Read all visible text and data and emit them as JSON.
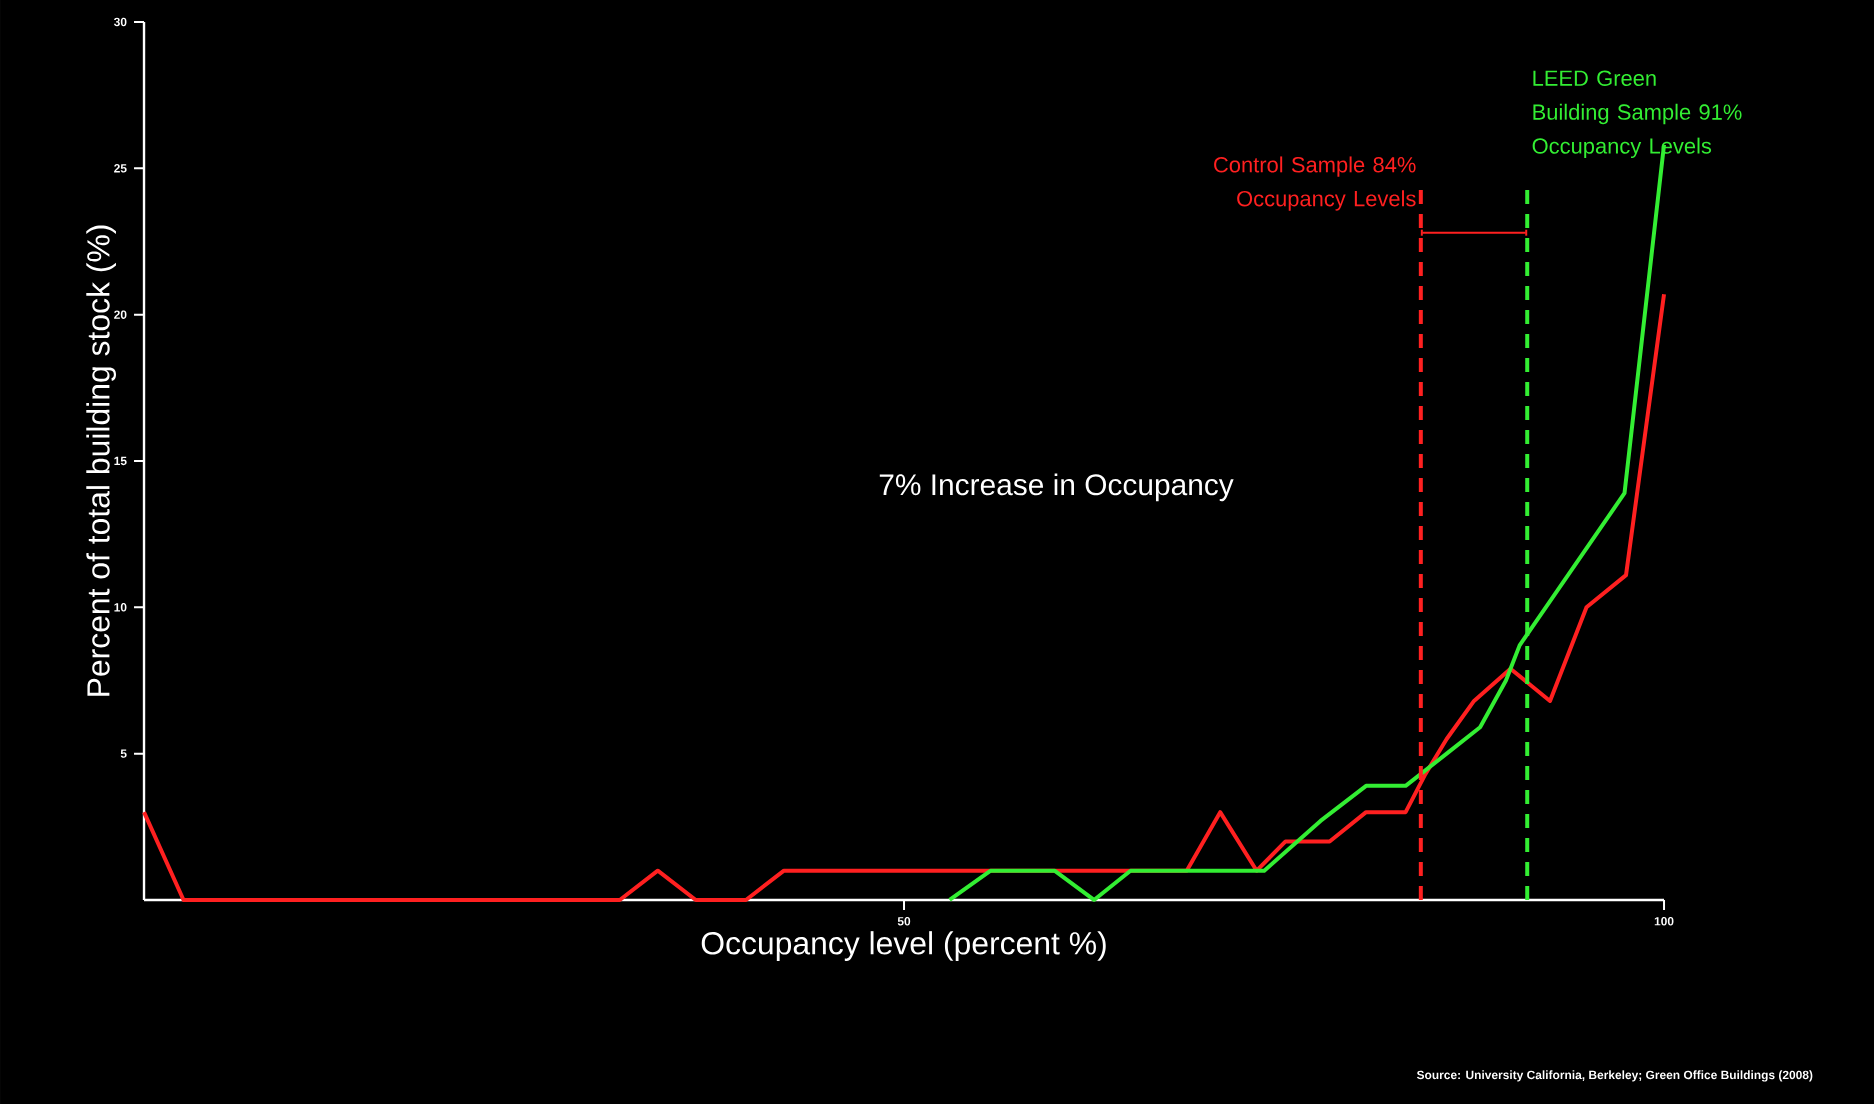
{
  "chart_data": {
    "type": "line",
    "xlabel": "Occupancy level (percent %)",
    "ylabel": "Percent of total building stock (%)",
    "xlim": [
      0,
      100
    ],
    "xticks": [
      50,
      100
    ],
    "ylim": [
      0,
      30
    ],
    "yticks": [
      5,
      10,
      15,
      20,
      25,
      30
    ],
    "series": [
      {
        "color": "#ff2020",
        "x": [
          0,
          2.6,
          31.3,
          33.8,
          36.3,
          39.6,
          42.1,
          68.6,
          70.8,
          73.2,
          75.1,
          78,
          80.4,
          83,
          84.3,
          85.7,
          87.5,
          89.9,
          92.5,
          94.9,
          97.5,
          100
        ],
        "values": [
          3,
          0,
          0,
          1,
          0,
          0,
          1,
          1,
          3,
          1,
          2,
          2,
          3,
          3,
          4.3,
          5.5,
          6.8,
          7.9,
          6.8,
          10,
          11.1,
          20.7
        ]
      },
      {
        "color": "#33ee33",
        "x": [
          53,
          55.7,
          59.9,
          62.5,
          64.9,
          72.1,
          73.7,
          77.4,
          80.4,
          83,
          85.7,
          87.9,
          89.6,
          90.5,
          97.4,
          100
        ],
        "values": [
          0,
          1,
          1,
          0,
          1,
          1,
          1,
          2.7,
          3.9,
          3.9,
          5,
          5.9,
          7.5,
          8.7,
          13.9,
          25.8
        ]
      }
    ],
    "ref_lines": [
      {
        "axis": "x",
        "value": 84,
        "label": "Control Sample 84% Occupancy Levels",
        "color": "#ff2020",
        "line_style": "dashed"
      },
      {
        "axis": "x",
        "value": 91,
        "label": "LEED Green Building Sample 91% Occupancy Levels",
        "color": "#33ee33",
        "line_style": "dashed"
      }
    ],
    "annotations": [
      "7% Increase in Occupancy",
      "Source: University California, Berkeley; Green Office Buildings (2008)"
    ],
    "line_style": "solid",
    "marker": "none",
    "grid": false
  }
}
